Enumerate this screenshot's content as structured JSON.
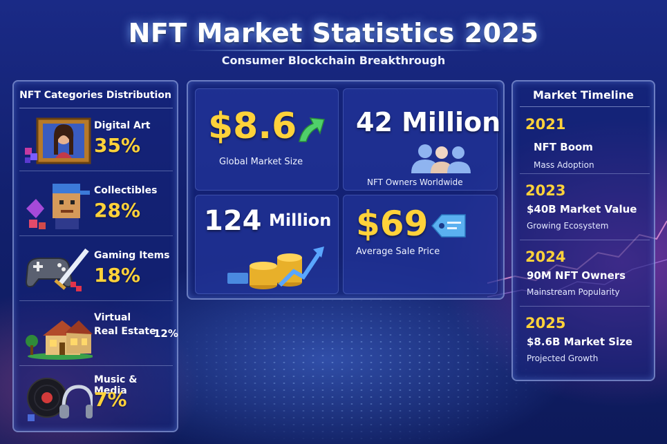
{
  "header": {
    "title": "NFT Market Statistics 2025",
    "subtitle": "Consumer Blockchain Breakthrough"
  },
  "categories": {
    "title": "NFT Categories Distribution",
    "items": [
      {
        "label": "Digital Art",
        "percent": "35%",
        "icon": "portrait-frame-icon"
      },
      {
        "label": "Collectibles",
        "percent": "28%",
        "icon": "pixel-avatar-icon"
      },
      {
        "label": "Gaming Items",
        "percent": "18%",
        "icon": "gamepad-sword-icon"
      },
      {
        "label_line1": "Virtual",
        "label_line2": "Real Estate",
        "percent": "12%",
        "icon": "house-icon"
      },
      {
        "label": "Music & Media",
        "percent": "7%",
        "icon": "vinyl-headphones-icon"
      }
    ]
  },
  "stats": {
    "market_size": {
      "value": "$8.6",
      "caption": "Global Market Size",
      "icon": "up-arrow-icon"
    },
    "owners": {
      "value": "42 Million",
      "caption": "NFT Owners Worldwide",
      "icon": "users-icon"
    },
    "transactions": {
      "value_num": "124",
      "value_unit": "Million",
      "icon": "coins-chart-icon"
    },
    "avg_price": {
      "value": "$69",
      "caption": "Average Sale Price",
      "icon": "price-tag-icon"
    }
  },
  "timeline": {
    "title": "Market Timeline",
    "events": [
      {
        "year": "2021",
        "headline": "NFT Boom",
        "detail": "Mass Adoption"
      },
      {
        "year": "2023",
        "headline": "$40B Market Value",
        "detail": "Growing Ecosystem"
      },
      {
        "year": "2024",
        "headline": "90M NFT Owners",
        "detail": "Mainstream Popularity"
      },
      {
        "year": "2025",
        "headline": "$8.6B Market Size",
        "detail": "Projected Growth"
      }
    ]
  },
  "colors": {
    "accent": "#ffd23a",
    "background": "#14227a",
    "highlight": "#4fd06a"
  }
}
